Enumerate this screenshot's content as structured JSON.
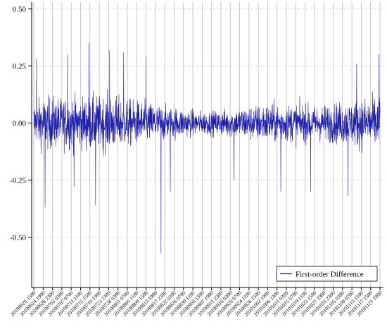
{
  "chart_data": {
    "type": "line",
    "legend": {
      "label": "First-order Difference",
      "placement": "bottom-right"
    },
    "grid": true,
    "y_ticks": [
      "0.50",
      "0.25",
      "0.00",
      "-0.25",
      "-0.50"
    ],
    "ylim": [
      -0.72,
      0.53
    ],
    "x_tick_labels": [
      "20100620 1500",
      "20100624 1900",
      "20100628 2300",
      "20100703 0300",
      "20100707 0700",
      "20100711 1100",
      "20100715 1500",
      "20100719 1900",
      "20100723 2300",
      "20100728 0300",
      "20100801 0700",
      "20100805 1100",
      "20100809 1500",
      "20100813 1900",
      "20100817 2300",
      "20100822 0300",
      "20100826 0700",
      "20100830 1100",
      "20100903 1500",
      "20100907 1900",
      "20100911 2300",
      "20100916 0300",
      "20100920 0700",
      "20100924 1100",
      "20100928 1500",
      "20101002 1900",
      "20101006 2300",
      "20101011 0300",
      "20101015 0700",
      "20101019 1100",
      "20101023 1500",
      "20101027 1900",
      "20101031 2300",
      "20101105 0300",
      "20101109 0700",
      "20101113 1100",
      "20101117 1500",
      "20101121 1900"
    ],
    "series": [
      {
        "name": "First-order Difference",
        "color": "#1f1fa8",
        "envelope_by_tick": [
          0.17,
          0.19,
          0.2,
          0.19,
          0.2,
          0.19,
          0.21,
          0.2,
          0.21,
          0.2,
          0.18,
          0.17,
          0.16,
          0.15,
          0.13,
          0.12,
          0.11,
          0.1,
          0.09,
          0.09,
          0.1,
          0.11,
          0.12,
          0.13,
          0.14,
          0.15,
          0.15,
          0.14,
          0.15,
          0.14,
          0.13,
          0.14,
          0.15,
          0.16,
          0.17,
          0.19,
          0.2,
          0.21
        ],
        "spikes": [
          {
            "x_tick_index": 0.3,
            "y": 0.28
          },
          {
            "x_tick_index": 1.2,
            "y": -0.37
          },
          {
            "x_tick_index": 3.6,
            "y": 0.3
          },
          {
            "x_tick_index": 4.3,
            "y": -0.28
          },
          {
            "x_tick_index": 5.9,
            "y": 0.35
          },
          {
            "x_tick_index": 6.6,
            "y": -0.36
          },
          {
            "x_tick_index": 8.1,
            "y": 0.32
          },
          {
            "x_tick_index": 9.6,
            "y": 0.31
          },
          {
            "x_tick_index": 12.0,
            "y": 0.29
          },
          {
            "x_tick_index": 13.6,
            "y": -0.57
          },
          {
            "x_tick_index": 14.6,
            "y": -0.3
          },
          {
            "x_tick_index": 21.4,
            "y": -0.25
          },
          {
            "x_tick_index": 26.4,
            "y": -0.3
          },
          {
            "x_tick_index": 29.6,
            "y": -0.3
          },
          {
            "x_tick_index": 33.6,
            "y": -0.32
          },
          {
            "x_tick_index": 34.5,
            "y": 0.26
          },
          {
            "x_tick_index": 36.9,
            "y": 0.3
          },
          {
            "x_tick_index": 37.3,
            "y": -0.35
          }
        ]
      }
    ]
  }
}
